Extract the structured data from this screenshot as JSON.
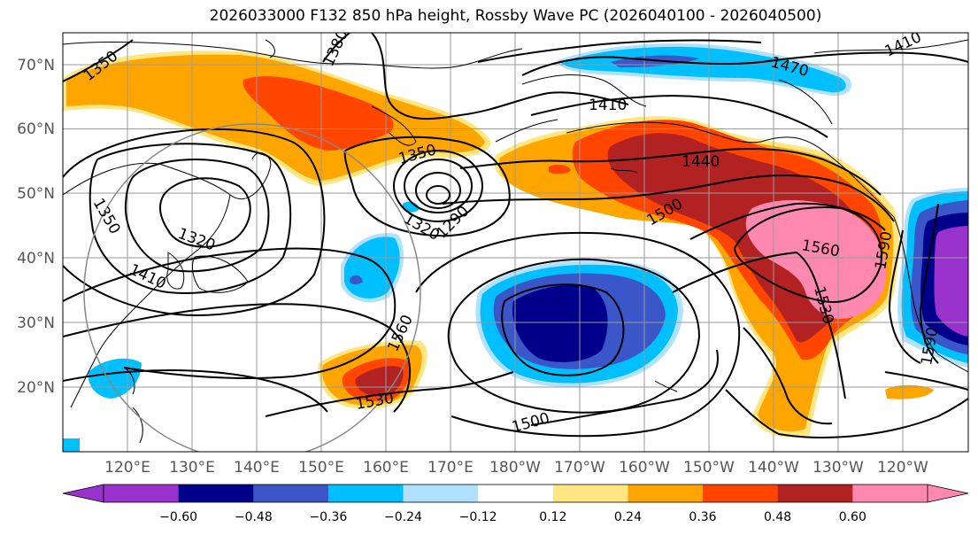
{
  "title": "2026033000 F132 850 hPa height, Rossby Wave PC (2026040100 - 2026040500)",
  "lat_labels": [
    "70°N",
    "60°N",
    "50°N",
    "40°N",
    "30°N",
    "20°N"
  ],
  "lon_labels": [
    "120°E",
    "130°E",
    "140°E",
    "150°E",
    "160°E",
    "170°E",
    "180°W",
    "170°W",
    "160°W",
    "150°W",
    "140°W",
    "130°W",
    "120°W"
  ],
  "contour_labels": [
    "1350",
    "1380",
    "1410",
    "1410",
    "1470",
    "1440",
    "1350",
    "1500",
    "1560",
    "1590",
    "1350",
    "1320",
    "1320",
    "1290",
    "1410",
    "1560",
    "1530",
    "1530",
    "1500",
    "1590"
  ],
  "colorbar": {
    "ticks": [
      "−0.60",
      "−0.48",
      "−0.36",
      "−0.24",
      "−0.12",
      "0.12",
      "0.24",
      "0.36",
      "0.48",
      "0.60"
    ],
    "colors": [
      "#9932CC",
      "#00008B",
      "#3A56C8",
      "#00BFFF",
      "#B0E2FF",
      "#FFFFFF",
      "#FFE680",
      "#FFA500",
      "#FF4500",
      "#B22222",
      "#FF88B0"
    ]
  },
  "shading_colors": {
    "neg_060": "#9932CC",
    "neg_048": "#00008B",
    "neg_036": "#3A56C8",
    "neg_024": "#00BFFF",
    "neg_012": "#B0E2FF",
    "pos_024": "#FFE680",
    "pos_036": "#FFA500",
    "pos_048": "#FF4500",
    "pos_060": "#B22222",
    "pos_max": "#FF88B0"
  },
  "map": {
    "projection": "cylindrical",
    "lon_range": "110°E – 110°W",
    "lat_range": "10°N – 75°N"
  }
}
